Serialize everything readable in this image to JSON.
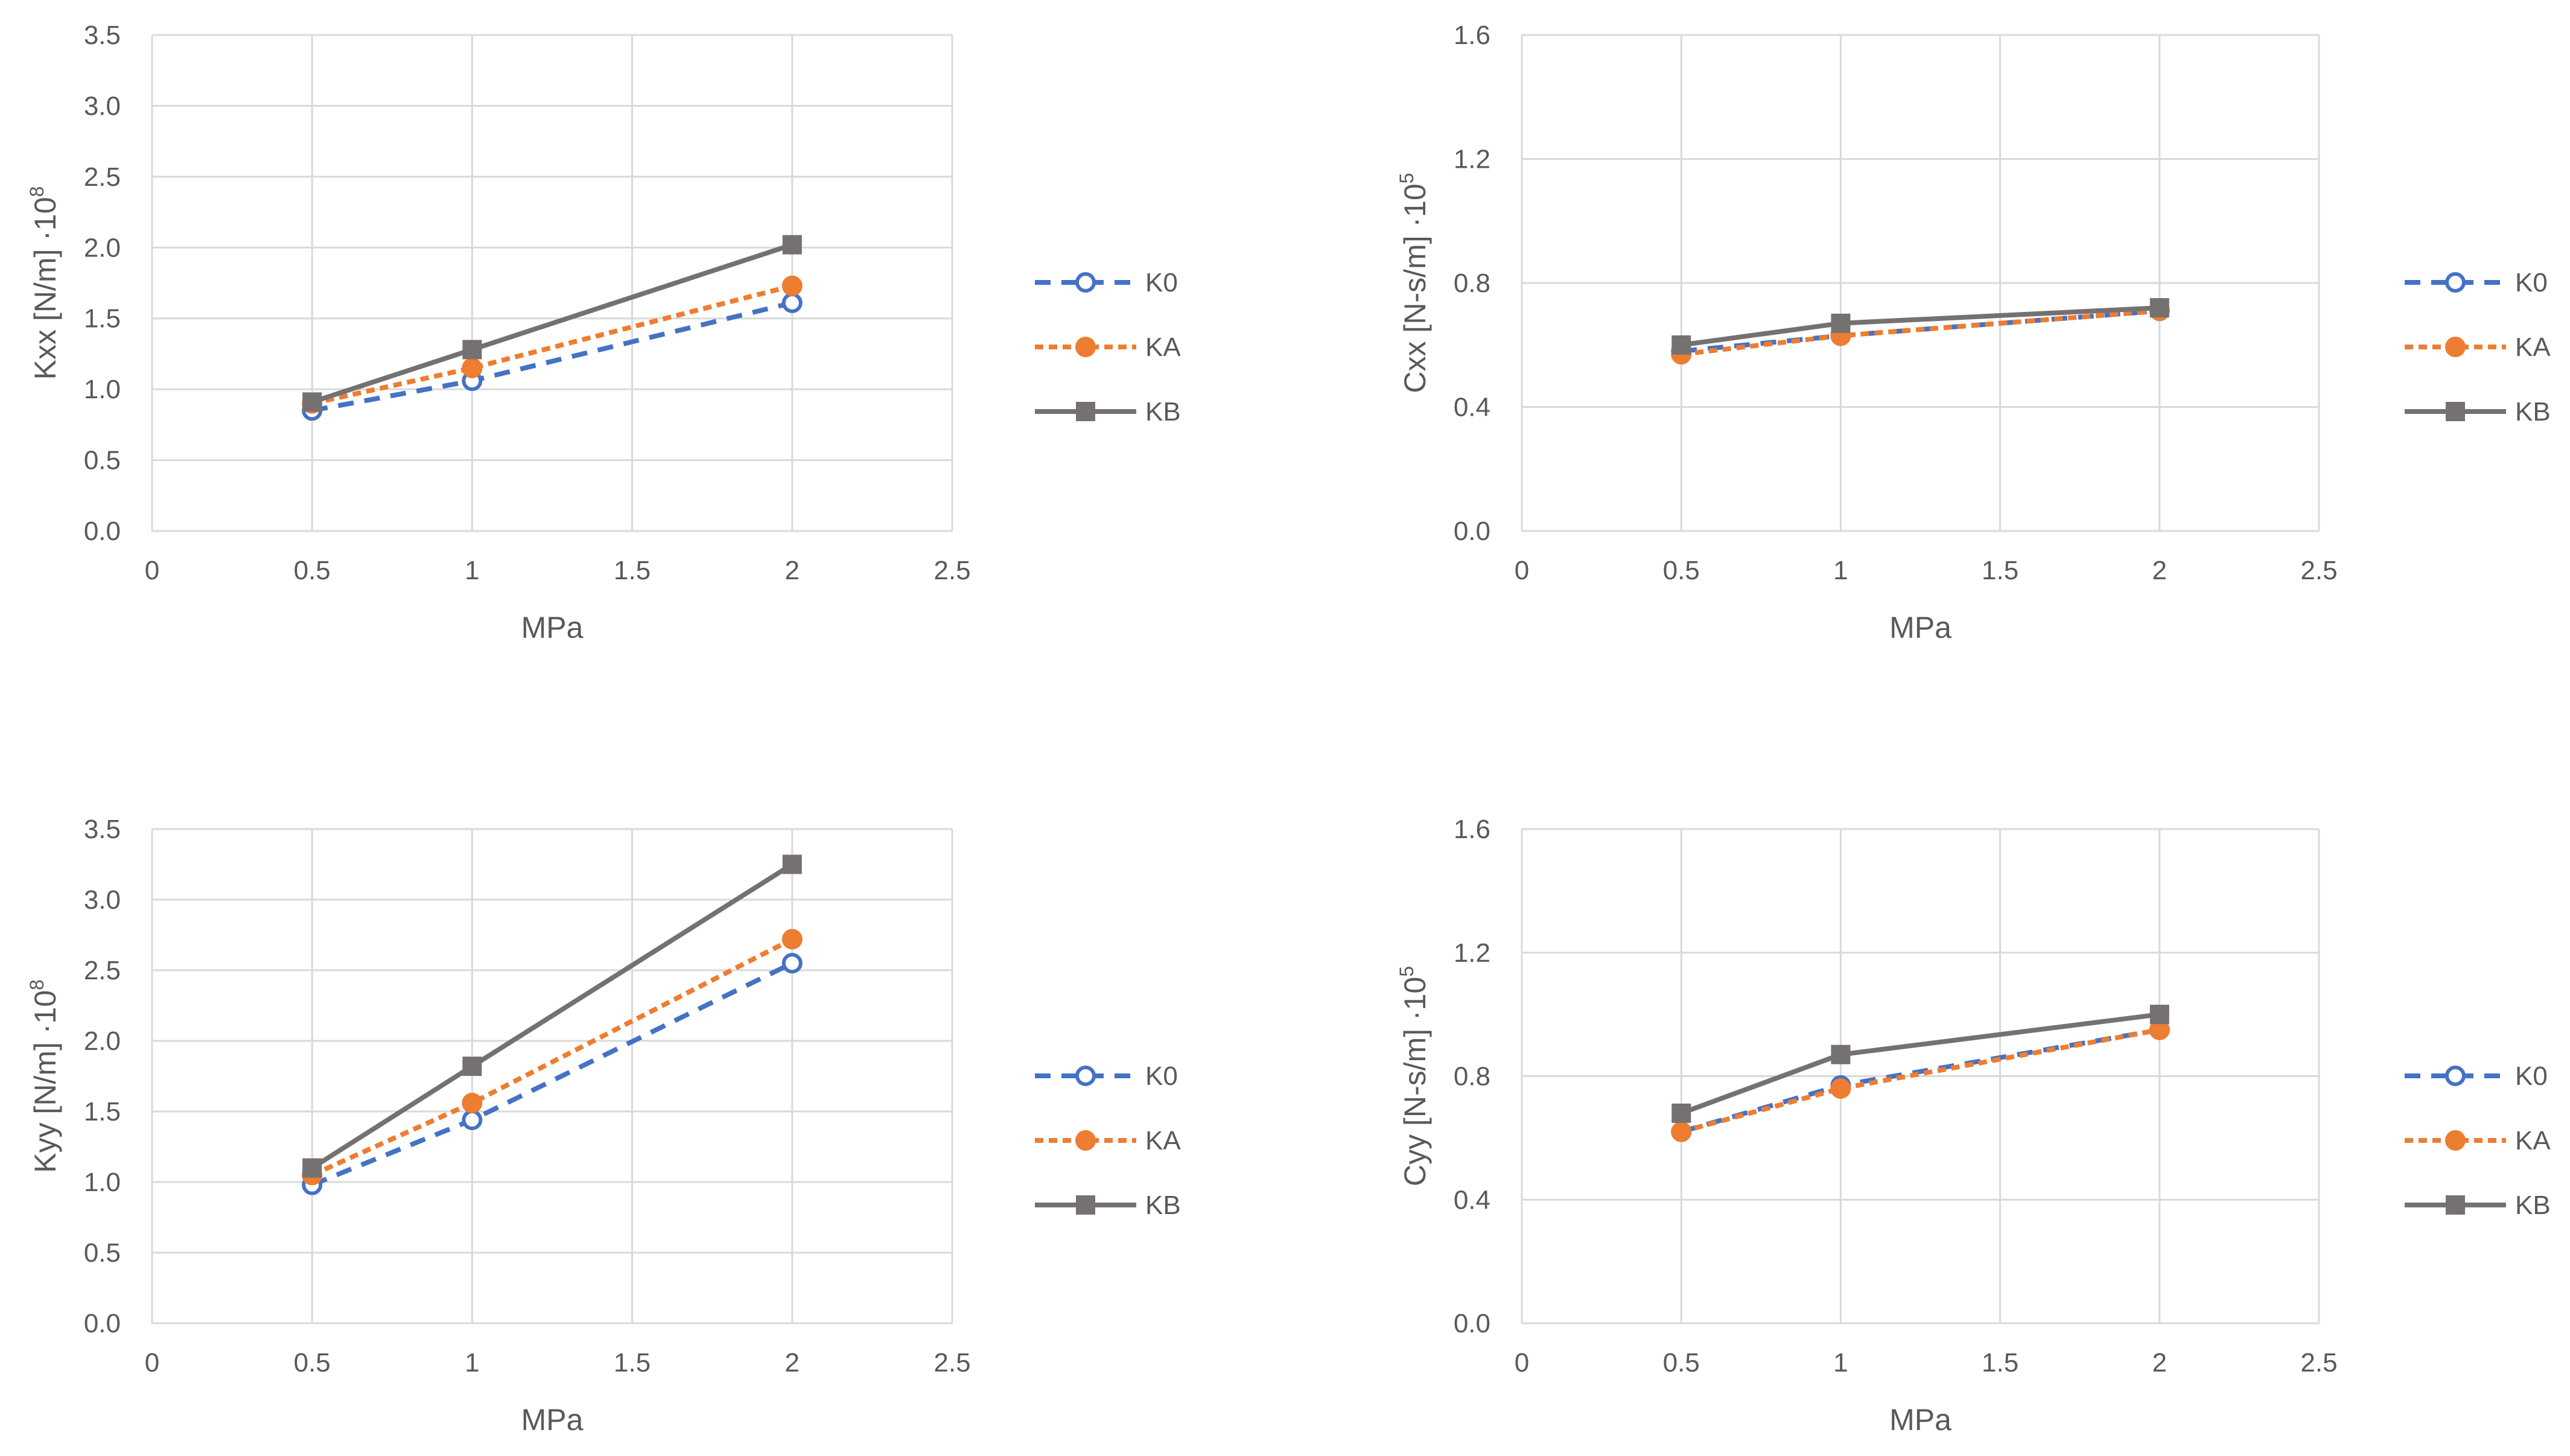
{
  "colors": {
    "K0": "#4472C4",
    "KA": "#ED7D31",
    "KB": "#767171",
    "grid": "#D9D9D9",
    "text": "#595959"
  },
  "chart_data": [
    {
      "id": "kxx",
      "type": "line",
      "xlabel": "MPa",
      "ylabel_main": "Kxx [N/m] ·10",
      "ylabel_exp": "8",
      "xlim": [
        0,
        2.5
      ],
      "ylim": [
        0,
        3.5
      ],
      "xticks": [
        "0",
        "0.5",
        "1",
        "1.5",
        "2",
        "2.5"
      ],
      "yticks": [
        "0.0",
        "0.5",
        "1.0",
        "1.5",
        "2.0",
        "2.5",
        "3.0",
        "3.5"
      ],
      "x": [
        0.5,
        1,
        2
      ],
      "series": [
        {
          "name": "K0",
          "values": [
            0.85,
            1.06,
            1.61
          ]
        },
        {
          "name": "KA",
          "values": [
            0.9,
            1.15,
            1.73
          ]
        },
        {
          "name": "KB",
          "values": [
            0.91,
            1.28,
            2.02
          ]
        }
      ],
      "legend": "right"
    },
    {
      "id": "cxx",
      "type": "line",
      "xlabel": "MPa",
      "ylabel_main": "Cxx [N-s/m] ·10",
      "ylabel_exp": "5",
      "xlim": [
        0,
        2.5
      ],
      "ylim": [
        0,
        1.6
      ],
      "xticks": [
        "0",
        "0.5",
        "1",
        "1.5",
        "2",
        "2.5"
      ],
      "yticks": [
        "0.0",
        "0.4",
        "0.8",
        "1.2",
        "1.6"
      ],
      "x": [
        0.5,
        1,
        2
      ],
      "series": [
        {
          "name": "K0",
          "values": [
            0.58,
            0.63,
            0.71
          ]
        },
        {
          "name": "KA",
          "values": [
            0.57,
            0.63,
            0.71
          ]
        },
        {
          "name": "KB",
          "values": [
            0.6,
            0.67,
            0.72
          ]
        }
      ],
      "legend": "right"
    },
    {
      "id": "kyy",
      "type": "line",
      "xlabel": "MPa",
      "ylabel_main": "Kyy [N/m] ·10",
      "ylabel_exp": "8",
      "xlim": [
        0,
        2.5
      ],
      "ylim": [
        0,
        3.5
      ],
      "xticks": [
        "0",
        "0.5",
        "1",
        "1.5",
        "2",
        "2.5"
      ],
      "yticks": [
        "0.0",
        "0.5",
        "1.0",
        "1.5",
        "2.0",
        "2.5",
        "3.0",
        "3.5"
      ],
      "x": [
        0.5,
        1,
        2
      ],
      "series": [
        {
          "name": "K0",
          "values": [
            0.98,
            1.44,
            2.55
          ]
        },
        {
          "name": "KA",
          "values": [
            1.05,
            1.56,
            2.72
          ]
        },
        {
          "name": "KB",
          "values": [
            1.1,
            1.82,
            3.25
          ]
        }
      ],
      "legend": "right"
    },
    {
      "id": "cyy",
      "type": "line",
      "xlabel": "MPa",
      "ylabel_main": "Cyy [N-s/m] ·10",
      "ylabel_exp": "5",
      "xlim": [
        0,
        2.5
      ],
      "ylim": [
        0,
        1.6
      ],
      "xticks": [
        "0",
        "0.5",
        "1",
        "1.5",
        "2",
        "2.5"
      ],
      "yticks": [
        "0.0",
        "0.4",
        "0.8",
        "1.2",
        "1.6"
      ],
      "x": [
        0.5,
        1,
        2
      ],
      "series": [
        {
          "name": "K0",
          "values": [
            0.62,
            0.77,
            0.95
          ]
        },
        {
          "name": "KA",
          "values": [
            0.62,
            0.76,
            0.95
          ]
        },
        {
          "name": "KB",
          "values": [
            0.68,
            0.87,
            1.0
          ]
        }
      ],
      "legend": "right"
    }
  ]
}
